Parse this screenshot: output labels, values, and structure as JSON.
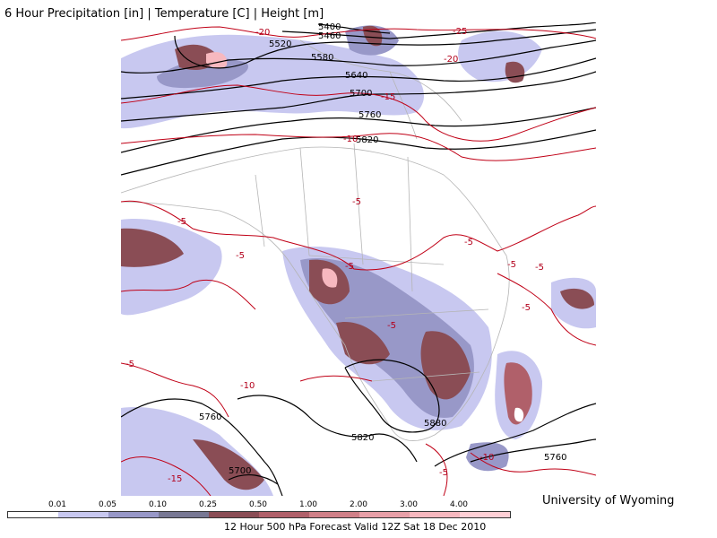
{
  "header": {
    "title": "6 Hour Precipitation [in] | Temperature [C] | Height [m]"
  },
  "credit": "University of Wyoming",
  "caption": "12 Hour 500 hPa Forecast Valid 12Z Sat 18 Dec 2010",
  "legend": {
    "labels": [
      "0.01",
      "0.05",
      "0.10",
      "0.25",
      "0.50",
      "1.00",
      "2.00",
      "3.00",
      "4.00"
    ],
    "colors": [
      "#ffffff",
      "#c8c8f0",
      "#9898c8",
      "#787894",
      "#8a4d55",
      "#b0606a",
      "#d08088",
      "#e8a0a8",
      "#f7b8bf",
      "#ffd0d6"
    ]
  },
  "height_labels": [
    "5400",
    "5460",
    "5520",
    "5580",
    "5640",
    "5700",
    "5760",
    "5820",
    "5880",
    "5820",
    "5760",
    "5700",
    "5760"
  ],
  "temp_labels": [
    "-20",
    "-25",
    "-20",
    "-15",
    "-10",
    "-5",
    "-5",
    "-5",
    "-5",
    "-5",
    "-5",
    "-5",
    "-5",
    "-5",
    "-10",
    "-5",
    "-15",
    "-10",
    "-5"
  ]
}
